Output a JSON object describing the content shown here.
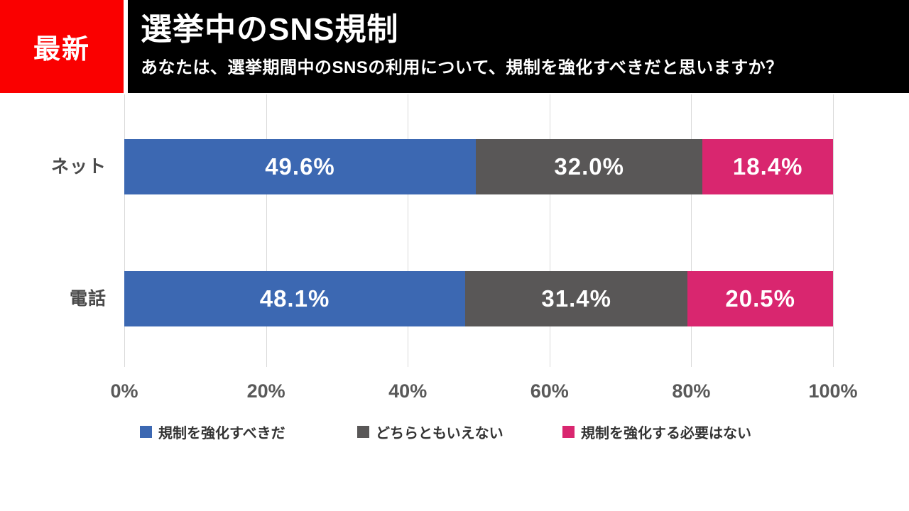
{
  "badge": {
    "label": "最新"
  },
  "header": {
    "title": "選挙中のSNS規制",
    "subtitle": "あなたは、選挙期間中のSNSの利用について、規制を強化すべきだと思いますか？"
  },
  "colors": {
    "badge_red": "#FA0000",
    "header_black": "#000000",
    "series_blue": "#3C68B2",
    "series_gray": "#595757",
    "series_pink": "#D9266F",
    "gridline": "#D9D9D9",
    "tick_text": "#595959"
  },
  "chart_data": {
    "type": "bar",
    "orientation": "horizontal",
    "stacked": true,
    "title": "選挙中のSNS規制",
    "categories": [
      "ネット",
      "電話"
    ],
    "series": [
      {
        "name": "規制を強化すべきだ",
        "color": "#3C68B2",
        "values": [
          49.6,
          48.1
        ]
      },
      {
        "name": "どちらともいえない",
        "color": "#595757",
        "values": [
          32.0,
          31.4
        ]
      },
      {
        "name": "規制を強化する必要はない",
        "color": "#D9266F",
        "values": [
          18.4,
          20.5
        ]
      }
    ],
    "value_labels": [
      [
        "49.6%",
        "32.0%",
        "18.4%"
      ],
      [
        "48.1%",
        "31.4%",
        "20.5%"
      ]
    ],
    "x_ticks": [
      "0%",
      "20%",
      "40%",
      "60%",
      "80%",
      "100%"
    ],
    "xlim": [
      0,
      100
    ],
    "grid": true,
    "legend_position": "bottom"
  }
}
